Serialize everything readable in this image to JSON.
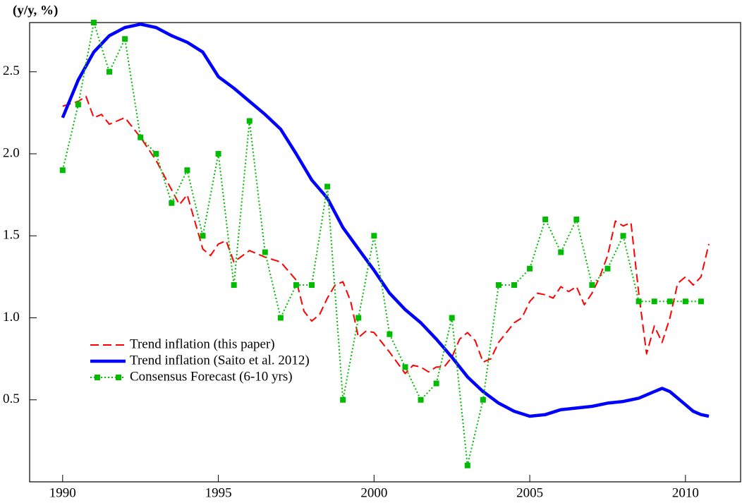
{
  "chart_data": {
    "type": "line",
    "y_label": "(y/y, %)",
    "xlim": [
      1988.94,
      2011.77
    ],
    "ylim": [
      0,
      2.8
    ],
    "xticks": [
      1990,
      1995,
      2000,
      2005,
      2010
    ],
    "yticks": [
      0.5,
      {
        "value": 1.0,
        "label": "1.0"
      },
      1.5,
      {
        "value": 2.0,
        "label": "2.0"
      },
      2.5
    ],
    "series": [
      {
        "name": "Trend inflation (this paper)",
        "color": "#ff0000",
        "style": "dashed",
        "x": [
          1990,
          1990.5,
          1990.75,
          1991,
          1991.25,
          1991.5,
          1992,
          1992.5,
          1993,
          1993.5,
          1993.75,
          1994,
          1994.5,
          1994.75,
          1995,
          1995.25,
          1995.5,
          1996,
          1996.5,
          1997,
          1997.5,
          1997.75,
          1998,
          1998.25,
          1998.5,
          1998.75,
          1999,
          1999.25,
          1999.5,
          1999.75,
          2000,
          2000.5,
          2001,
          2001.25,
          2001.5,
          2001.75,
          2002,
          2002.25,
          2002.5,
          2002.75,
          2003,
          2003.25,
          2003.5,
          2003.75,
          2004,
          2004.5,
          2004.75,
          2005,
          2005.25,
          2005.5,
          2005.75,
          2006,
          2006.25,
          2006.5,
          2006.75,
          2007,
          2007.25,
          2007.5,
          2007.75,
          2008,
          2008.25,
          2008.5,
          2008.75,
          2009,
          2009.25,
          2009.5,
          2009.75,
          2010,
          2010.25,
          2010.5,
          2010.75
        ],
        "values": [
          2.29,
          2.32,
          2.35,
          2.22,
          2.24,
          2.18,
          2.22,
          2.1,
          1.96,
          1.78,
          1.69,
          1.75,
          1.42,
          1.38,
          1.45,
          1.47,
          1.34,
          1.41,
          1.37,
          1.34,
          1.23,
          1.04,
          0.98,
          1.02,
          1.12,
          1.2,
          1.22,
          1.1,
          0.88,
          0.92,
          0.91,
          0.79,
          0.66,
          0.71,
          0.7,
          0.67,
          0.7,
          0.7,
          0.76,
          0.87,
          0.91,
          0.86,
          0.73,
          0.75,
          0.85,
          0.97,
          1.0,
          1.1,
          1.15,
          1.14,
          1.12,
          1.19,
          1.16,
          1.19,
          1.08,
          1.15,
          1.25,
          1.38,
          1.59,
          1.56,
          1.58,
          1.15,
          0.78,
          0.95,
          0.85,
          1.0,
          1.21,
          1.25,
          1.2,
          1.25,
          1.45
        ]
      },
      {
        "name": "Trend inflation (Saito et al. 2012)",
        "color": "#0000ff",
        "style": "solid",
        "x": [
          1990,
          1990.5,
          1991,
          1991.5,
          1992,
          1992.5,
          1993,
          1993.5,
          1994,
          1994.5,
          1995,
          1995.5,
          1996,
          1996.5,
          1997,
          1997.5,
          1998,
          1998.5,
          1999,
          1999.5,
          2000,
          2000.5,
          2001,
          2001.5,
          2002,
          2002.5,
          2003,
          2003.5,
          2004,
          2004.5,
          2005,
          2005.5,
          2006,
          2006.5,
          2007,
          2007.5,
          2008,
          2008.5,
          2009,
          2009.25,
          2009.5,
          2010,
          2010.25,
          2010.5,
          2010.75
        ],
        "values": [
          2.22,
          2.45,
          2.62,
          2.72,
          2.77,
          2.79,
          2.77,
          2.72,
          2.68,
          2.62,
          2.47,
          2.4,
          2.32,
          2.24,
          2.15,
          2.0,
          1.84,
          1.73,
          1.55,
          1.42,
          1.29,
          1.15,
          1.05,
          0.97,
          0.87,
          0.76,
          0.64,
          0.55,
          0.48,
          0.43,
          0.4,
          0.41,
          0.44,
          0.45,
          0.46,
          0.48,
          0.49,
          0.51,
          0.55,
          0.57,
          0.55,
          0.47,
          0.43,
          0.41,
          0.4
        ]
      },
      {
        "name": "Consensus Forecast (6-10 yrs)",
        "color": "#00bb00",
        "style": "dotted",
        "marker": "square",
        "x": [
          1990,
          1990.5,
          1991,
          1991.5,
          1992,
          1992.5,
          1993,
          1993.5,
          1994,
          1994.5,
          1995,
          1995.5,
          1996,
          1996.5,
          1997,
          1997.5,
          1998,
          1998.5,
          1999,
          1999.5,
          2000,
          2000.5,
          2001,
          2001.5,
          2002,
          2002.5,
          2003,
          2003.5,
          2004,
          2004.5,
          2005,
          2005.5,
          2006,
          2006.5,
          2007,
          2007.5,
          2008,
          2008.5,
          2009,
          2009.5,
          2010,
          2010.5
        ],
        "values": [
          1.9,
          2.3,
          2.8,
          2.5,
          2.7,
          2.1,
          2.0,
          1.7,
          1.9,
          1.5,
          2.0,
          1.2,
          2.2,
          1.4,
          1.0,
          1.2,
          1.2,
          1.8,
          0.5,
          1.0,
          1.5,
          0.9,
          0.7,
          0.5,
          0.6,
          1.0,
          0.1,
          0.5,
          1.2,
          1.2,
          1.3,
          1.6,
          1.4,
          1.6,
          1.2,
          1.3,
          1.5,
          1.1,
          1.1,
          1.1,
          1.1,
          1.1
        ]
      }
    ]
  }
}
